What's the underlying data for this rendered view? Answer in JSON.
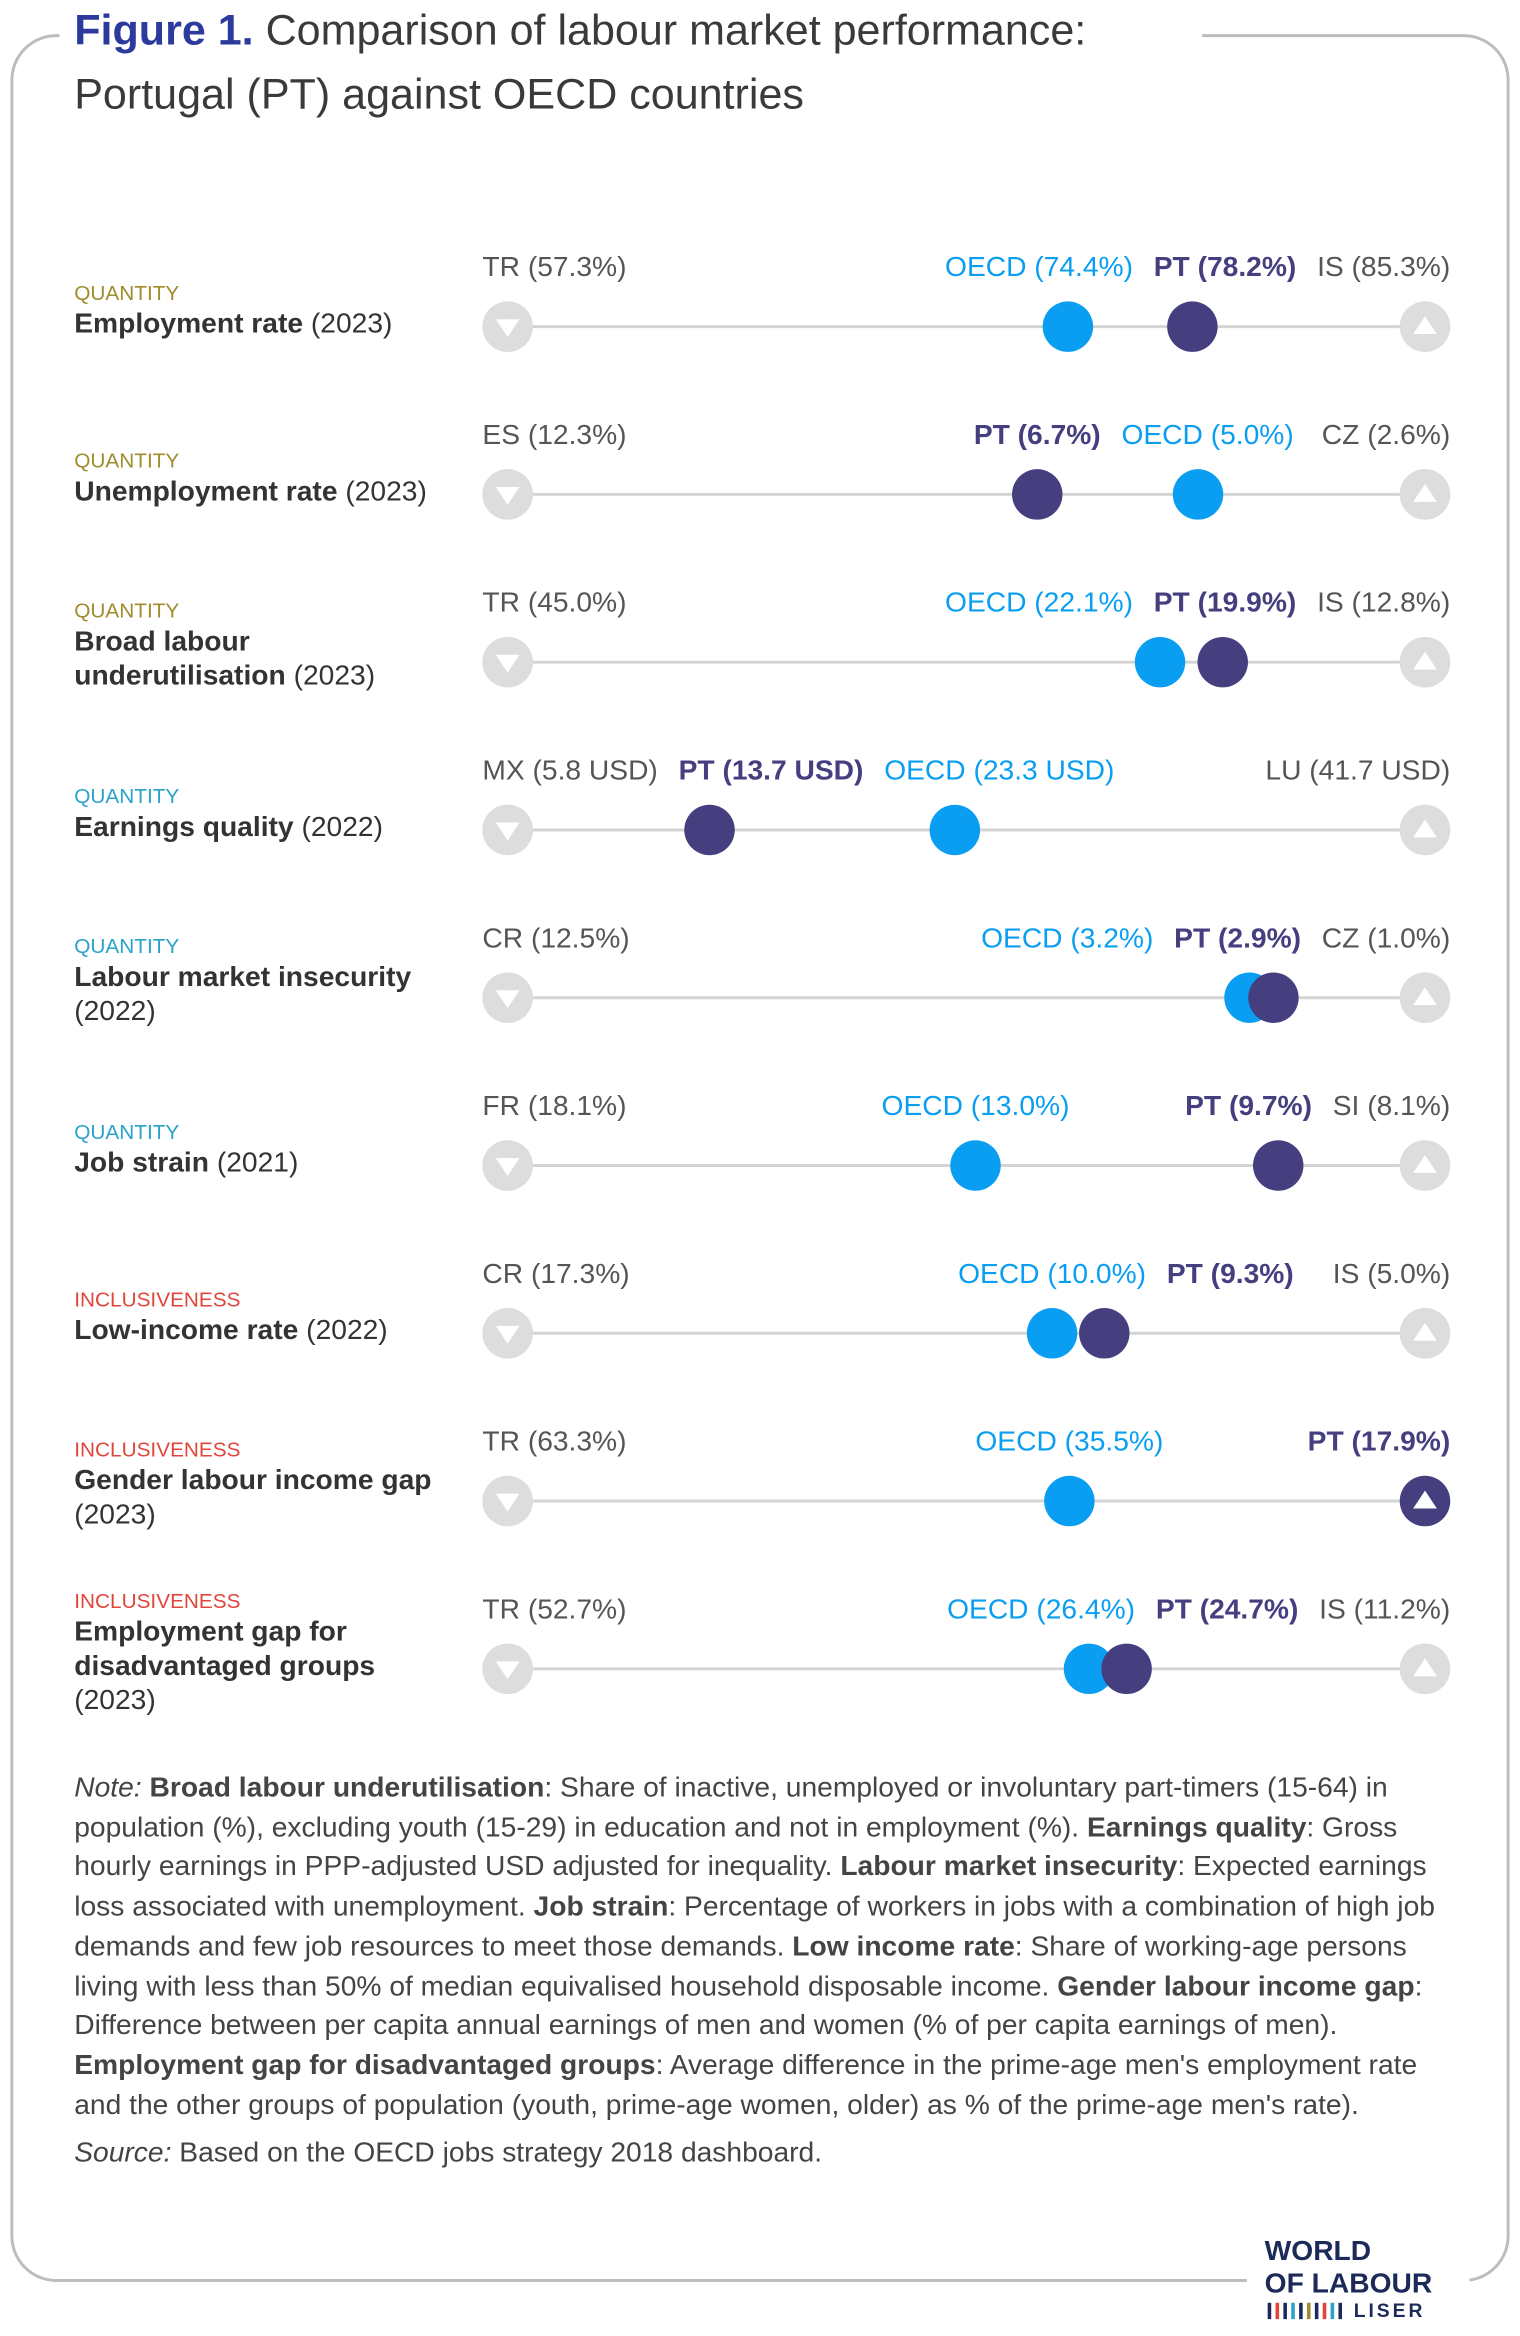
{
  "figure": {
    "label": "Figure 1.",
    "title": "Comparison of labour market performance: Portugal (PT) against OECD countries"
  },
  "chart_data": [
    {
      "type": "dot-range",
      "group": "QUANTITY",
      "group_color": "#a08c2c",
      "title": "Employment rate",
      "year": "(2023)",
      "xlim": [
        57.3,
        85.3
      ],
      "xticks": [
        {
          "value": 57.3,
          "label": "TR (57.3%)"
        },
        {
          "value": 85.3,
          "label": "IS (85.3%)"
        }
      ],
      "values": [
        74.4,
        78.2
      ],
      "value_labels": [
        "OECD (74.4%)",
        "PT (78.2%)"
      ],
      "colors": [
        "#0a9ef2",
        "#453f80"
      ]
    },
    {
      "type": "dot-range",
      "group": "QUANTITY",
      "group_color": "#a08c2c",
      "title": "Unemployment rate",
      "year": "(2023)",
      "xlim": [
        12.3,
        2.6
      ],
      "xticks": [
        {
          "value": 12.3,
          "label": "ES (12.3%)"
        },
        {
          "value": 2.6,
          "label": "CZ (2.6%)"
        }
      ],
      "values": [
        5.0,
        6.7
      ],
      "value_labels": [
        "OECD (5.0%)",
        "PT (6.7%)"
      ],
      "colors": [
        "#0a9ef2",
        "#453f80"
      ]
    },
    {
      "type": "dot-range",
      "group": "QUANTITY",
      "group_color": "#a08c2c",
      "title": "Broad labour underutilisation",
      "year": "(2023)",
      "xlim": [
        45.0,
        12.8
      ],
      "xticks": [
        {
          "value": 45.0,
          "label": "TR (45.0%)"
        },
        {
          "value": 12.8,
          "label": "IS (12.8%)"
        }
      ],
      "values": [
        22.1,
        19.9
      ],
      "value_labels": [
        "OECD (22.1%)",
        "PT (19.9%)"
      ],
      "colors": [
        "#0a9ef2",
        "#453f80"
      ]
    },
    {
      "type": "dot-range",
      "group": "QUANTITY",
      "group_color": "#2aa3c8",
      "title": "Earnings quality",
      "year": "(2022)",
      "xlim": [
        5.8,
        41.7
      ],
      "xticks": [
        {
          "value": 5.8,
          "label": "MX (5.8 USD)"
        },
        {
          "value": 41.7,
          "label": "LU (41.7 USD)"
        }
      ],
      "values": [
        23.3,
        13.7
      ],
      "value_labels": [
        "OECD (23.3 USD)",
        "PT (13.7 USD)"
      ],
      "colors": [
        "#0a9ef2",
        "#453f80"
      ]
    },
    {
      "type": "dot-range",
      "group": "QUANTITY",
      "group_color": "#2aa3c8",
      "title": "Labour market insecurity",
      "year": "(2022)",
      "xlim": [
        12.5,
        1.0
      ],
      "xticks": [
        {
          "value": 12.5,
          "label": "CR (12.5%)"
        },
        {
          "value": 1.0,
          "label": "CZ (1.0%)"
        }
      ],
      "values": [
        3.2,
        2.9
      ],
      "value_labels": [
        "OECD (3.2%)",
        "PT (2.9%)"
      ],
      "colors": [
        "#0a9ef2",
        "#453f80"
      ]
    },
    {
      "type": "dot-range",
      "group": "QUANTITY",
      "group_color": "#2aa3c8",
      "title": "Job strain",
      "year": "(2021)",
      "xlim": [
        18.1,
        8.1
      ],
      "xticks": [
        {
          "value": 18.1,
          "label": "FR (18.1%)"
        },
        {
          "value": 8.1,
          "label": "SI (8.1%)"
        }
      ],
      "values": [
        13.0,
        9.7
      ],
      "value_labels": [
        "OECD (13.0%)",
        "PT (9.7%)"
      ],
      "colors": [
        "#0a9ef2",
        "#453f80"
      ]
    },
    {
      "type": "dot-range",
      "group": "INCLUSIVENESS",
      "group_color": "#e0463c",
      "title": "Low-income rate",
      "year": "(2022)",
      "xlim": [
        17.3,
        5.0
      ],
      "xticks": [
        {
          "value": 17.3,
          "label": "CR (17.3%)"
        },
        {
          "value": 5.0,
          "label": "IS (5.0%)"
        }
      ],
      "values": [
        10.0,
        9.3
      ],
      "value_labels": [
        "OECD (10.0%)",
        "PT (9.3%)"
      ],
      "colors": [
        "#0a9ef2",
        "#453f80"
      ]
    },
    {
      "type": "dot-range",
      "group": "INCLUSIVENESS",
      "group_color": "#e0463c",
      "title": "Gender labour income gap",
      "year": "(2023)",
      "xlim": [
        63.3,
        17.9
      ],
      "xticks": [
        {
          "value": 63.3,
          "label": "TR (63.3%)"
        }
      ],
      "values": [
        35.5,
        17.9
      ],
      "value_labels": [
        "OECD (35.5%)",
        "PT (17.9%)"
      ],
      "colors": [
        "#0a9ef2",
        "#453f80"
      ]
    },
    {
      "type": "dot-range",
      "group": "INCLUSIVENESS",
      "group_color": "#e0463c",
      "title": "Employment gap for disadvantaged groups",
      "year": "(2023)",
      "xlim": [
        52.7,
        11.2
      ],
      "xticks": [
        {
          "value": 52.7,
          "label": "TR (52.7%)"
        },
        {
          "value": 11.2,
          "label": "IS (11.2%)"
        }
      ],
      "values": [
        26.4,
        24.7
      ],
      "value_labels": [
        "OECD (26.4%)",
        "PT (24.7%)"
      ],
      "colors": [
        "#0a9ef2",
        "#453f80"
      ]
    }
  ],
  "note": {
    "label": "Note:",
    "parts": [
      {
        "term": "Broad labour underutilisation",
        "text": ": Share of inactive, unemployed or involuntary part-timers (15-64) in population (%), excluding youth (15-29) in education and not in employment (%)."
      },
      {
        "term": "Earnings quality",
        "text": ": Gross hourly earnings in PPP-adjusted USD adjusted for inequality."
      },
      {
        "term": "Labour market insecurity",
        "text": ": Expected earnings loss associated with unemployment."
      },
      {
        "term": "Job strain",
        "text": ": Percentage of workers in jobs with a combination of high job demands and few job resources to meet those demands."
      },
      {
        "term": "Low income rate",
        "text": ": Share of working-age persons living with less than 50% of median equivalised household disposable income."
      },
      {
        "term": "Gender labour income gap",
        "text": ": Difference between per capita annual earnings of men and women (% of per capita earnings of men)."
      },
      {
        "term": "Employment gap for disadvantaged groups",
        "text": ": Average difference in the prime-age men's employment rate and the other groups of population (youth, prime-age women, older) as % of the prime-age men's rate)."
      }
    ]
  },
  "source": {
    "label": "Source:",
    "text": "Based on the OECD jobs strategy 2018 dashboard."
  },
  "logo": {
    "line1": "WORLD",
    "line2": "OF LABOUR",
    "line3": "LISER"
  }
}
